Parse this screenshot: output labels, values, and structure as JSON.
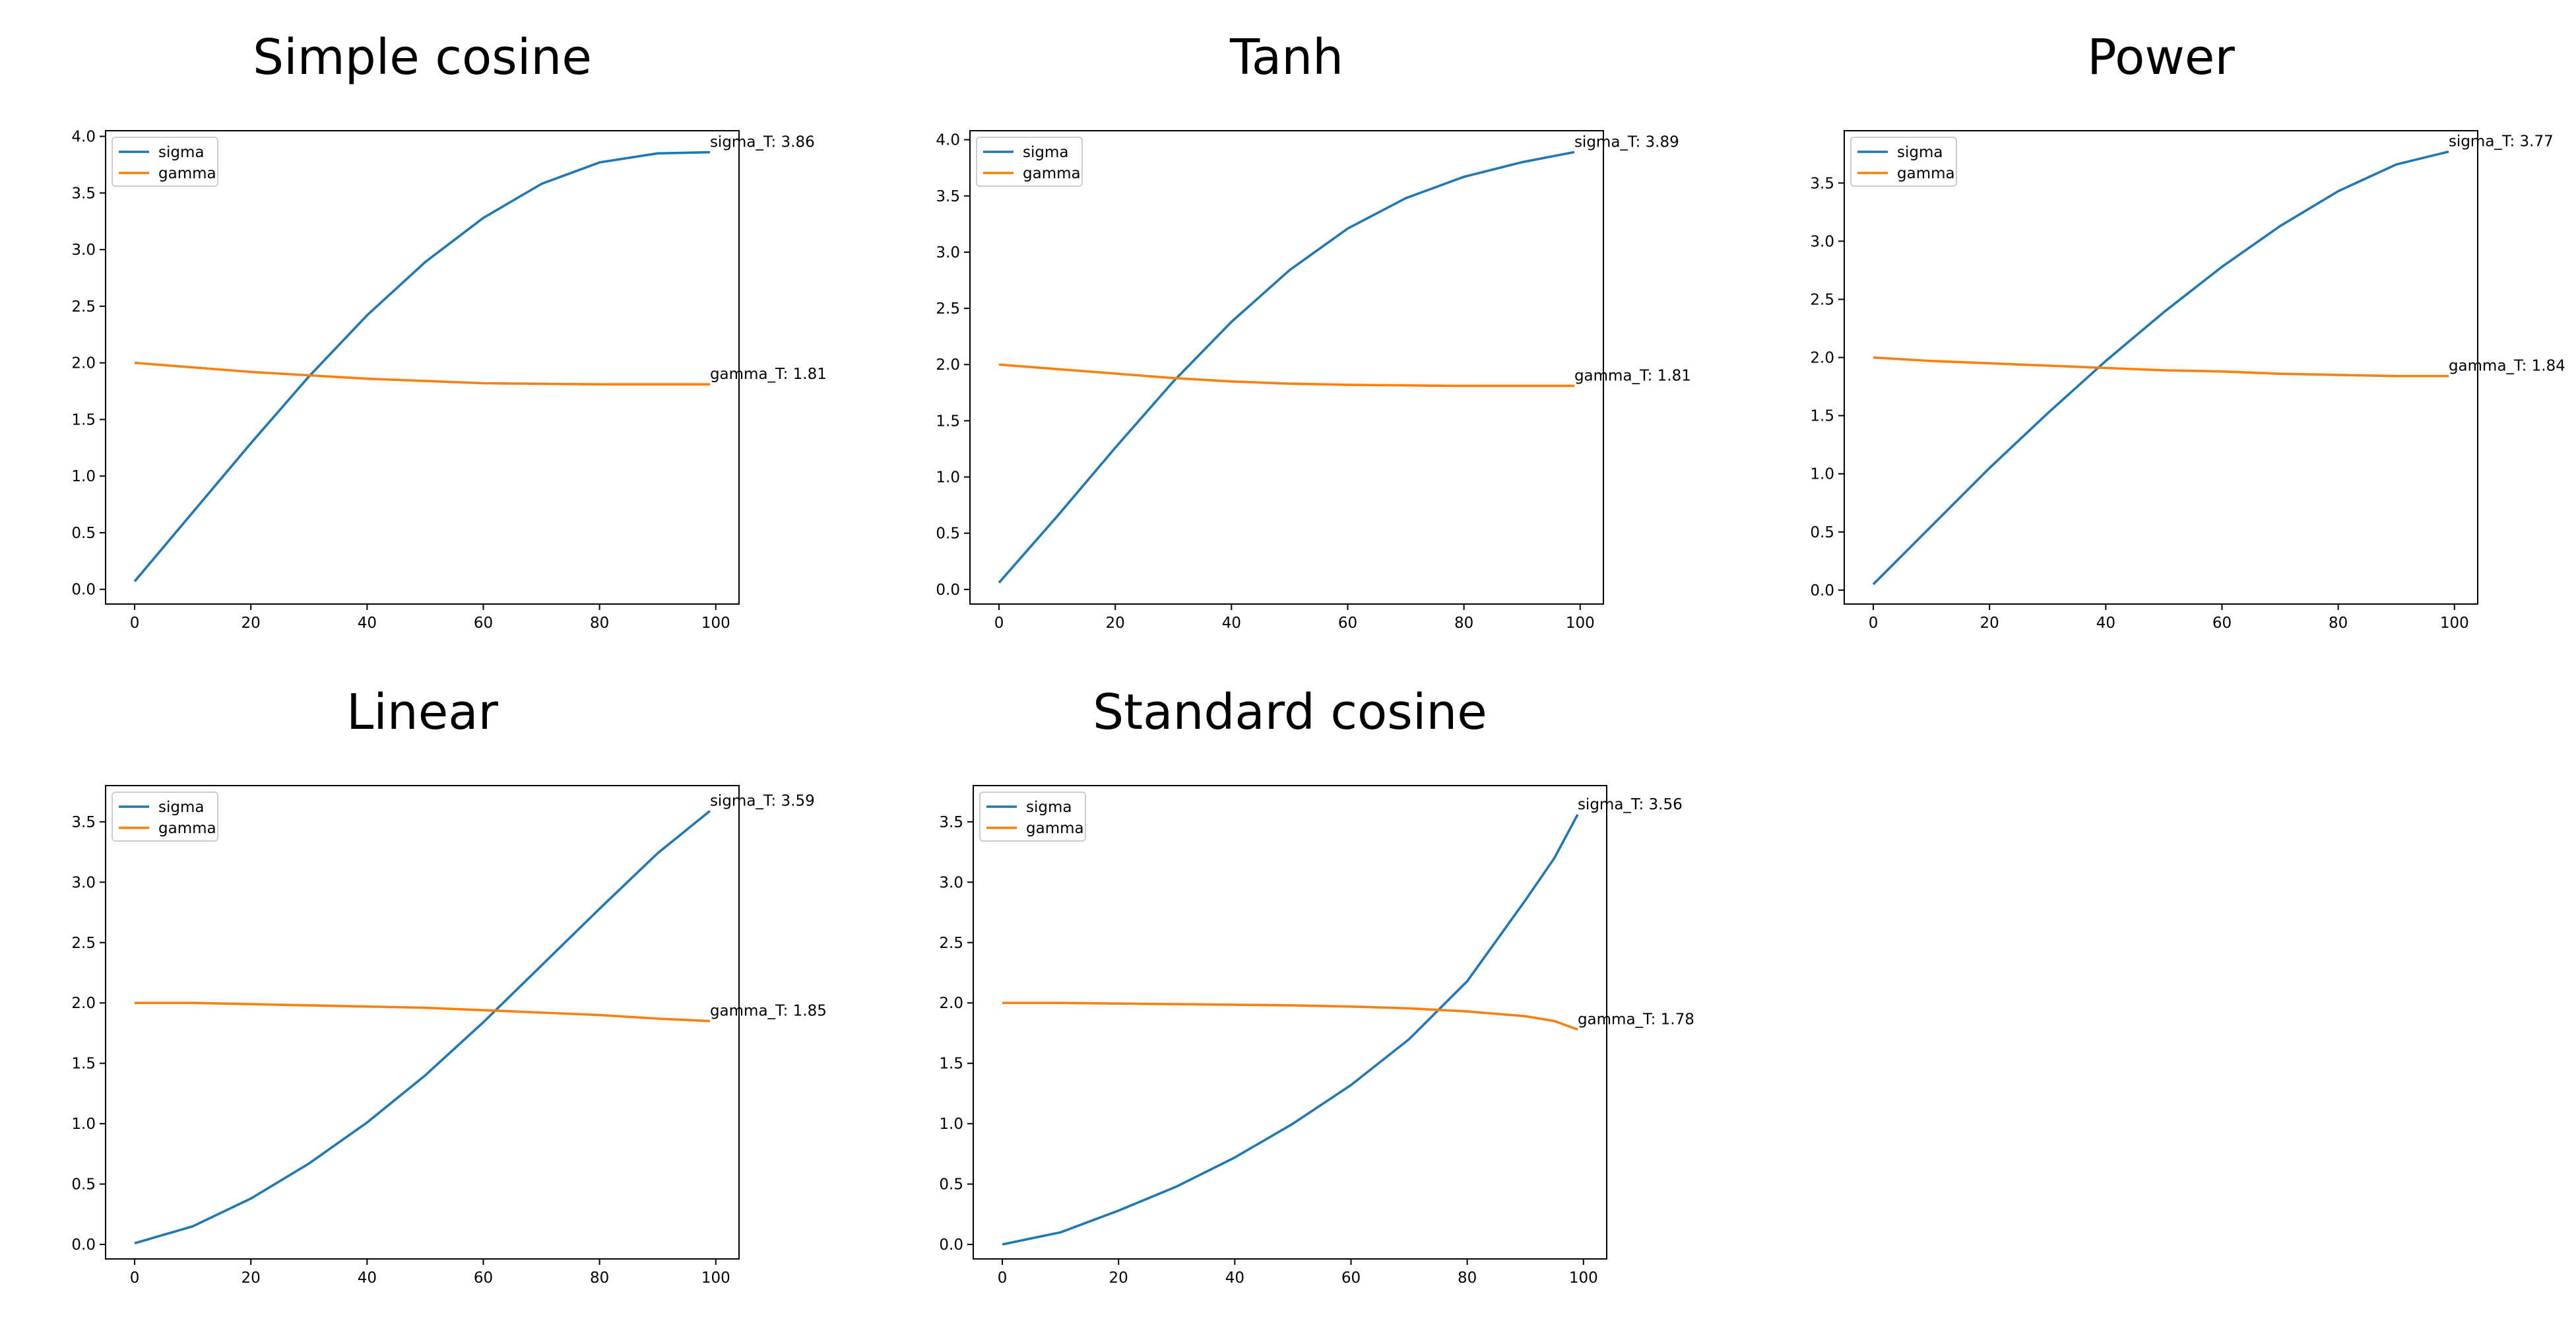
{
  "colors": {
    "sigma": "#1f77b4",
    "gamma": "#ff7f0e",
    "axes": "#000000",
    "legend_border": "#cccccc"
  },
  "chart_data": [
    {
      "type": "line",
      "title": "Simple cosine",
      "xlabel": "",
      "ylabel": "",
      "xlim": [
        -5,
        104
      ],
      "ylim": [
        -0.13,
        4.05
      ],
      "xticks": [
        0,
        20,
        40,
        60,
        80,
        100
      ],
      "yticks": [
        0.0,
        0.5,
        1.0,
        1.5,
        2.0,
        2.5,
        3.0,
        3.5,
        4.0
      ],
      "legend": {
        "location": "upper left",
        "entries": [
          "sigma",
          "gamma"
        ]
      },
      "grid": false,
      "series": [
        {
          "name": "sigma",
          "x": [
            0,
            10,
            20,
            30,
            40,
            50,
            60,
            70,
            80,
            90,
            99
          ],
          "values": [
            0.07,
            0.68,
            1.29,
            1.88,
            2.42,
            2.89,
            3.28,
            3.58,
            3.77,
            3.85,
            3.86
          ]
        },
        {
          "name": "gamma",
          "x": [
            0,
            10,
            20,
            30,
            40,
            50,
            60,
            70,
            80,
            90,
            99
          ],
          "values": [
            2.0,
            1.96,
            1.92,
            1.89,
            1.86,
            1.84,
            1.82,
            1.815,
            1.81,
            1.81,
            1.81
          ]
        }
      ],
      "annotations": [
        {
          "text": "sigma_T: 3.86",
          "x": 99,
          "y": 3.86
        },
        {
          "text": "gamma_T: 1.81",
          "x": 99,
          "y": 1.81
        }
      ]
    },
    {
      "type": "line",
      "title": "Tanh",
      "xlabel": "",
      "ylabel": "",
      "xlim": [
        -5,
        104
      ],
      "ylim": [
        -0.13,
        4.08
      ],
      "xticks": [
        0,
        20,
        40,
        60,
        80,
        100
      ],
      "yticks": [
        0.0,
        0.5,
        1.0,
        1.5,
        2.0,
        2.5,
        3.0,
        3.5,
        4.0
      ],
      "legend": {
        "location": "upper left",
        "entries": [
          "sigma",
          "gamma"
        ]
      },
      "grid": false,
      "series": [
        {
          "name": "sigma",
          "x": [
            0,
            10,
            20,
            30,
            40,
            50,
            60,
            70,
            80,
            90,
            99
          ],
          "values": [
            0.06,
            0.65,
            1.26,
            1.85,
            2.38,
            2.84,
            3.21,
            3.48,
            3.67,
            3.8,
            3.89
          ]
        },
        {
          "name": "gamma",
          "x": [
            0,
            10,
            20,
            30,
            40,
            50,
            60,
            70,
            80,
            90,
            99
          ],
          "values": [
            2.0,
            1.96,
            1.92,
            1.88,
            1.85,
            1.83,
            1.82,
            1.815,
            1.81,
            1.81,
            1.81
          ]
        }
      ],
      "annotations": [
        {
          "text": "sigma_T: 3.89",
          "x": 99,
          "y": 3.89
        },
        {
          "text": "gamma_T: 1.81",
          "x": 99,
          "y": 1.81
        }
      ]
    },
    {
      "type": "line",
      "title": "Power",
      "xlabel": "",
      "ylabel": "",
      "xlim": [
        -5,
        104
      ],
      "ylim": [
        -0.12,
        3.95
      ],
      "xticks": [
        0,
        20,
        40,
        60,
        80,
        100
      ],
      "yticks": [
        0.0,
        0.5,
        1.0,
        1.5,
        2.0,
        2.5,
        3.0,
        3.5
      ],
      "legend": {
        "location": "upper left",
        "entries": [
          "sigma",
          "gamma"
        ]
      },
      "grid": false,
      "series": [
        {
          "name": "sigma",
          "x": [
            0,
            10,
            20,
            30,
            40,
            50,
            60,
            70,
            80,
            90,
            99
          ],
          "values": [
            0.05,
            0.55,
            1.05,
            1.52,
            1.97,
            2.39,
            2.78,
            3.13,
            3.43,
            3.66,
            3.77
          ]
        },
        {
          "name": "gamma",
          "x": [
            0,
            10,
            20,
            30,
            40,
            50,
            60,
            70,
            80,
            90,
            99
          ],
          "values": [
            2.0,
            1.97,
            1.95,
            1.93,
            1.91,
            1.89,
            1.88,
            1.86,
            1.85,
            1.84,
            1.84
          ]
        }
      ],
      "annotations": [
        {
          "text": "sigma_T: 3.77",
          "x": 99,
          "y": 3.77
        },
        {
          "text": "gamma_T: 1.84",
          "x": 99,
          "y": 1.84
        }
      ]
    },
    {
      "type": "line",
      "title": "Linear",
      "xlabel": "",
      "ylabel": "",
      "xlim": [
        -5,
        104
      ],
      "ylim": [
        -0.12,
        3.8
      ],
      "xticks": [
        0,
        20,
        40,
        60,
        80,
        100
      ],
      "yticks": [
        0.0,
        0.5,
        1.0,
        1.5,
        2.0,
        2.5,
        3.0,
        3.5
      ],
      "legend": {
        "location": "upper left",
        "entries": [
          "sigma",
          "gamma"
        ]
      },
      "grid": false,
      "series": [
        {
          "name": "sigma",
          "x": [
            0,
            10,
            20,
            30,
            40,
            50,
            60,
            70,
            80,
            90,
            99
          ],
          "values": [
            0.01,
            0.15,
            0.38,
            0.67,
            1.01,
            1.4,
            1.84,
            2.31,
            2.78,
            3.24,
            3.59
          ]
        },
        {
          "name": "gamma",
          "x": [
            0,
            10,
            20,
            30,
            40,
            50,
            60,
            70,
            80,
            90,
            99
          ],
          "values": [
            2.0,
            2.0,
            1.99,
            1.98,
            1.97,
            1.96,
            1.94,
            1.92,
            1.9,
            1.87,
            1.85
          ]
        }
      ],
      "annotations": [
        {
          "text": "sigma_T: 3.59",
          "x": 99,
          "y": 3.59
        },
        {
          "text": "gamma_T: 1.85",
          "x": 99,
          "y": 1.85
        }
      ]
    },
    {
      "type": "line",
      "title": "Standard cosine",
      "xlabel": "",
      "ylabel": "",
      "xlim": [
        -5,
        104
      ],
      "ylim": [
        -0.12,
        3.8
      ],
      "xticks": [
        0,
        20,
        40,
        60,
        80,
        100
      ],
      "yticks": [
        0.0,
        0.5,
        1.0,
        1.5,
        2.0,
        2.5,
        3.0,
        3.5
      ],
      "legend": {
        "location": "upper left",
        "entries": [
          "sigma",
          "gamma"
        ]
      },
      "grid": false,
      "series": [
        {
          "name": "sigma",
          "x": [
            0,
            10,
            20,
            30,
            40,
            50,
            60,
            70,
            80,
            90,
            95,
            99
          ],
          "values": [
            0.0,
            0.1,
            0.28,
            0.48,
            0.72,
            1.0,
            1.32,
            1.7,
            2.18,
            2.85,
            3.2,
            3.56
          ]
        },
        {
          "name": "gamma",
          "x": [
            0,
            10,
            20,
            30,
            40,
            50,
            60,
            70,
            80,
            90,
            95,
            99
          ],
          "values": [
            2.0,
            2.0,
            1.995,
            1.99,
            1.985,
            1.98,
            1.97,
            1.955,
            1.93,
            1.89,
            1.85,
            1.78
          ]
        }
      ],
      "annotations": [
        {
          "text": "sigma_T: 3.56",
          "x": 99,
          "y": 3.56
        },
        {
          "text": "gamma_T: 1.78",
          "x": 99,
          "y": 1.78
        }
      ]
    }
  ]
}
